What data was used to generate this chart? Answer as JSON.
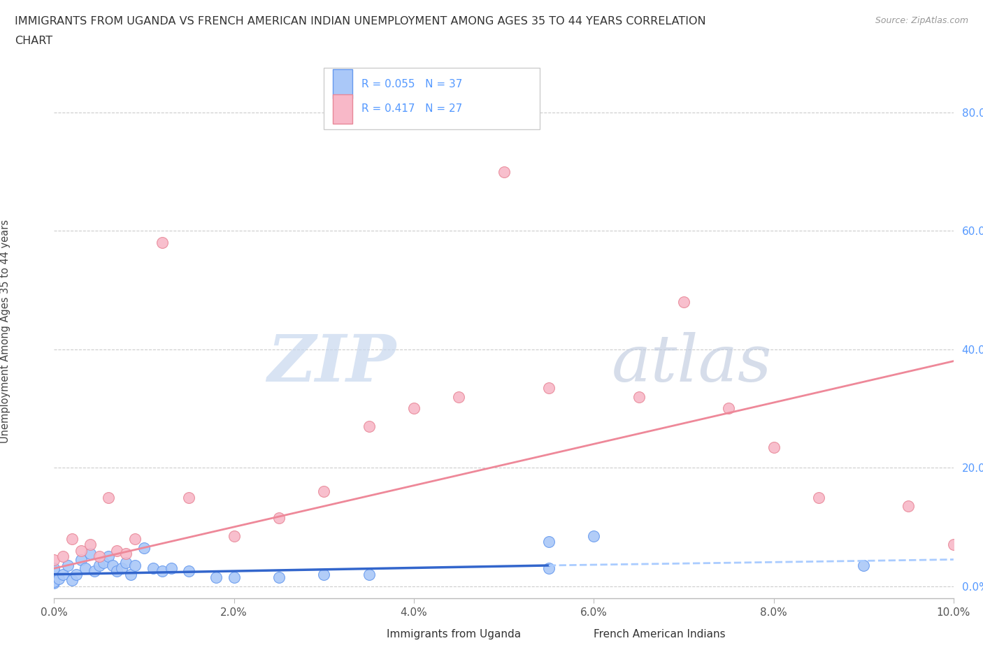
{
  "title_line1": "IMMIGRANTS FROM UGANDA VS FRENCH AMERICAN INDIAN UNEMPLOYMENT AMONG AGES 35 TO 44 YEARS CORRELATION",
  "title_line2": "CHART",
  "source_text": "Source: ZipAtlas.com",
  "ylabel": "Unemployment Among Ages 35 to 44 years",
  "xlim": [
    0.0,
    10.0
  ],
  "ylim": [
    -2.0,
    88.0
  ],
  "x_ticks": [
    0.0,
    2.0,
    4.0,
    6.0,
    8.0,
    10.0
  ],
  "x_tick_labels": [
    "0.0%",
    "2.0%",
    "4.0%",
    "6.0%",
    "8.0%",
    "10.0%"
  ],
  "y_ticks": [
    0.0,
    20.0,
    40.0,
    60.0,
    80.0
  ],
  "y_tick_labels": [
    "0.0%",
    "20.0%",
    "40.0%",
    "60.0%",
    "80.0%"
  ],
  "watermark_zip": "ZIP",
  "watermark_atlas": "atlas",
  "legend_r1": "R = 0.055",
  "legend_n1": "N = 37",
  "legend_r2": "R = 0.417",
  "legend_n2": "N = 27",
  "blue_fill_color": "#aac8f8",
  "blue_edge_color": "#6699ee",
  "pink_fill_color": "#f8b8c8",
  "pink_edge_color": "#e88898",
  "blue_line_color": "#3366cc",
  "blue_dash_color": "#aaccff",
  "pink_line_color": "#ee8899",
  "tick_label_color": "#5599ff",
  "grid_color": "#cccccc",
  "background_color": "#ffffff",
  "blue_scatter": [
    [
      0.0,
      2.5
    ],
    [
      0.0,
      1.5
    ],
    [
      0.0,
      3.0
    ],
    [
      0.0,
      0.5
    ],
    [
      0.0,
      0.8
    ],
    [
      0.05,
      1.2
    ],
    [
      0.1,
      2.0
    ],
    [
      0.15,
      3.5
    ],
    [
      0.2,
      1.0
    ],
    [
      0.25,
      2.0
    ],
    [
      0.3,
      4.5
    ],
    [
      0.35,
      3.0
    ],
    [
      0.4,
      5.5
    ],
    [
      0.45,
      2.5
    ],
    [
      0.5,
      3.5
    ],
    [
      0.55,
      4.0
    ],
    [
      0.6,
      5.0
    ],
    [
      0.65,
      3.5
    ],
    [
      0.7,
      2.5
    ],
    [
      0.75,
      3.0
    ],
    [
      0.8,
      4.0
    ],
    [
      0.85,
      2.0
    ],
    [
      0.9,
      3.5
    ],
    [
      1.0,
      6.5
    ],
    [
      1.1,
      3.0
    ],
    [
      1.2,
      2.5
    ],
    [
      1.3,
      3.0
    ],
    [
      1.5,
      2.5
    ],
    [
      1.8,
      1.5
    ],
    [
      2.0,
      1.5
    ],
    [
      2.5,
      1.5
    ],
    [
      3.0,
      2.0
    ],
    [
      3.5,
      2.0
    ],
    [
      5.5,
      7.5
    ],
    [
      5.5,
      3.0
    ],
    [
      6.0,
      8.5
    ],
    [
      9.0,
      3.5
    ]
  ],
  "pink_scatter": [
    [
      0.0,
      4.5
    ],
    [
      0.1,
      5.0
    ],
    [
      0.2,
      8.0
    ],
    [
      0.3,
      6.0
    ],
    [
      0.4,
      7.0
    ],
    [
      0.5,
      5.0
    ],
    [
      0.6,
      15.0
    ],
    [
      0.7,
      6.0
    ],
    [
      0.8,
      5.5
    ],
    [
      0.9,
      8.0
    ],
    [
      1.2,
      58.0
    ],
    [
      1.5,
      15.0
    ],
    [
      2.0,
      8.5
    ],
    [
      2.5,
      11.5
    ],
    [
      3.0,
      16.0
    ],
    [
      3.5,
      27.0
    ],
    [
      4.0,
      30.0
    ],
    [
      4.5,
      32.0
    ],
    [
      5.0,
      70.0
    ],
    [
      5.5,
      33.5
    ],
    [
      6.5,
      32.0
    ],
    [
      7.0,
      48.0
    ],
    [
      7.5,
      30.0
    ],
    [
      8.0,
      23.5
    ],
    [
      8.5,
      15.0
    ],
    [
      9.5,
      13.5
    ],
    [
      10.0,
      7.0
    ]
  ],
  "blue_reg_solid": [
    0.0,
    5.5,
    2.0,
    3.5
  ],
  "blue_reg_dash": [
    5.5,
    10.0,
    3.5,
    4.5
  ],
  "pink_reg": [
    0.0,
    10.0,
    3.0,
    38.0
  ]
}
